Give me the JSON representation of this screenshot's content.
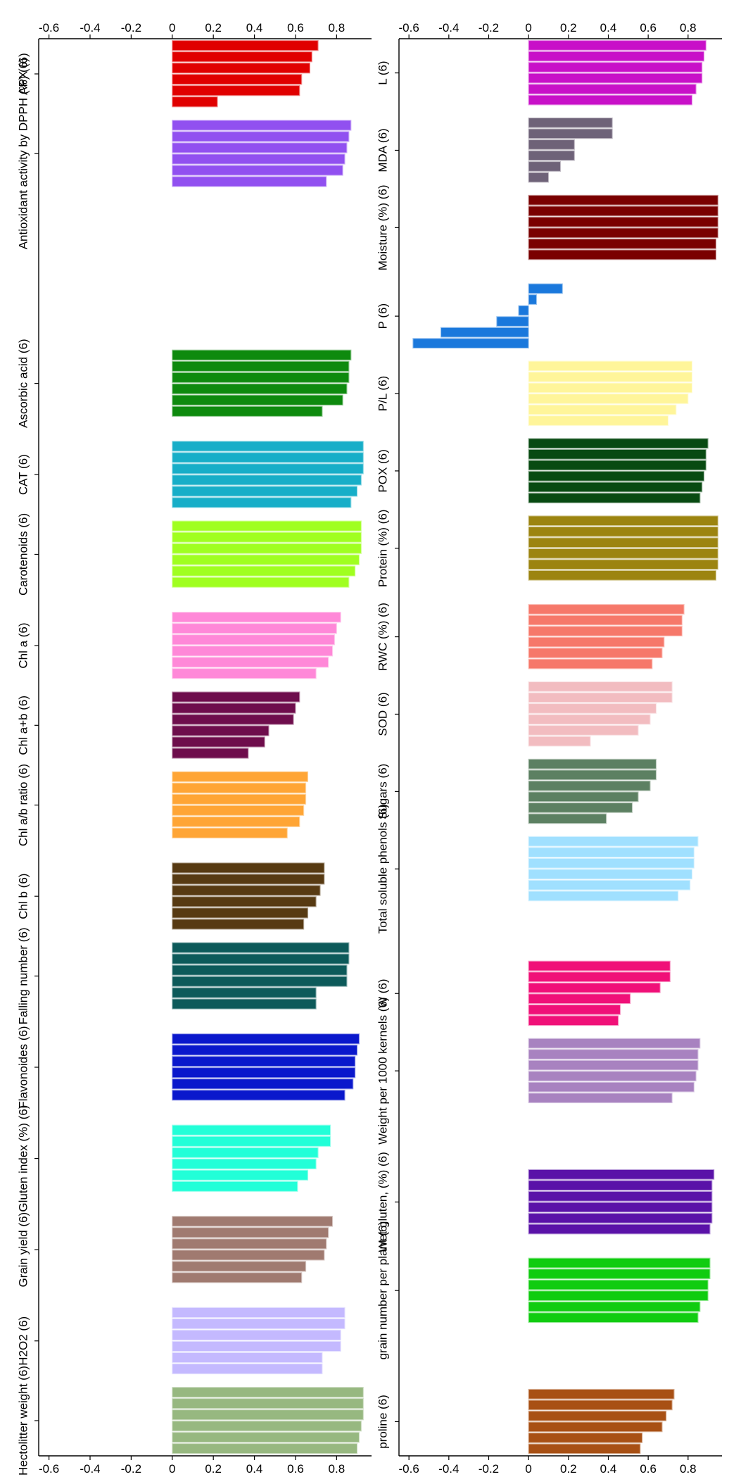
{
  "chart_data": [
    {
      "type": "bar",
      "orientation": "horizontal",
      "xlim": [
        -0.65,
        0.97
      ],
      "x_ticks": [
        -0.6,
        -0.4,
        -0.2,
        0,
        0.2,
        0.4,
        0.6,
        0.8
      ],
      "x_tick_labels": [
        "-0.6",
        "-0.4",
        "-0.2",
        "0",
        "0.2",
        "0.4",
        "0.6",
        "0.8"
      ],
      "grid": false,
      "legend": "none",
      "groups": [
        {
          "label": "APX (6)",
          "color": "#e00000",
          "values": [
            0.71,
            0.68,
            0.67,
            0.63,
            0.62,
            0.22
          ]
        },
        {
          "label": "Antioxidant activity by DPPH (%) (6)",
          "color": "#9150f0",
          "values": [
            0.87,
            0.86,
            0.85,
            0.84,
            0.83,
            0.75
          ],
          "gap_after": 2.4
        },
        {
          "label": "Ascorbic acid (6)",
          "color": "#0e8a0e",
          "values": [
            0.87,
            0.86,
            0.86,
            0.85,
            0.83,
            0.73
          ],
          "gap_after": 0.35
        },
        {
          "label": "CAT (6)",
          "color": "#17aec8",
          "values": [
            0.93,
            0.93,
            0.93,
            0.92,
            0.9,
            0.87
          ]
        },
        {
          "label": "Carotenoids (6)",
          "color": "#a0ff20",
          "values": [
            0.92,
            0.92,
            0.92,
            0.91,
            0.89,
            0.86
          ],
          "gap_after": 0.35
        },
        {
          "label": "Chl a (6)",
          "color": "#ff88d8",
          "values": [
            0.82,
            0.8,
            0.79,
            0.78,
            0.76,
            0.7
          ]
        },
        {
          "label": "Chl a+b (6)",
          "color": "#6e0d4c",
          "values": [
            0.62,
            0.6,
            0.59,
            0.47,
            0.45,
            0.37
          ]
        },
        {
          "label": "Chl a/b ratio (6)",
          "color": "#ffa535",
          "values": [
            0.66,
            0.65,
            0.65,
            0.64,
            0.62,
            0.56
          ],
          "gap_after": 0.35
        },
        {
          "label": "Chl b (6)",
          "color": "#573a12",
          "values": [
            0.74,
            0.74,
            0.72,
            0.7,
            0.66,
            0.64
          ]
        },
        {
          "label": "Falling number (6)",
          "color": "#0d5a5a",
          "values": [
            0.86,
            0.86,
            0.85,
            0.85,
            0.7,
            0.7
          ],
          "gap_after": 0.35
        },
        {
          "label": "Flavonoides (6)",
          "color": "#0a18cc",
          "values": [
            0.91,
            0.9,
            0.89,
            0.89,
            0.88,
            0.84
          ],
          "gap_after": 0.35
        },
        {
          "label": "Gluten index (%) (6)",
          "color": "#22ffd8",
          "values": [
            0.77,
            0.77,
            0.71,
            0.7,
            0.66,
            0.61
          ],
          "gap_after": 0.35
        },
        {
          "label": "Grain yield (6)",
          "color": "#a07a70",
          "values": [
            0.78,
            0.76,
            0.75,
            0.74,
            0.65,
            0.63
          ],
          "gap_after": 0.35
        },
        {
          "label": "H2O2 (6)",
          "color": "#c4b9ff",
          "values": [
            0.84,
            0.84,
            0.82,
            0.82,
            0.73,
            0.73
          ]
        },
        {
          "label": "Hectolitter weight (6)",
          "color": "#97b880",
          "values": [
            0.93,
            0.93,
            0.93,
            0.92,
            0.91,
            0.9
          ]
        }
      ]
    },
    {
      "type": "bar",
      "orientation": "horizontal",
      "xlim": [
        -0.65,
        0.97
      ],
      "x_ticks": [
        -0.6,
        -0.4,
        -0.2,
        0,
        0.2,
        0.4,
        0.6,
        0.8
      ],
      "x_tick_labels": [
        "-0.6",
        "-0.4",
        "-0.2",
        "0",
        "0.2",
        "0.4",
        "0.6",
        "0.8"
      ],
      "grid": false,
      "legend": "none",
      "groups": [
        {
          "label": "L (6)",
          "color": "#c810c8",
          "values": [
            0.89,
            0.88,
            0.87,
            0.87,
            0.84,
            0.82
          ]
        },
        {
          "label": "MDA (6)",
          "color": "#6e6278",
          "values": [
            0.42,
            0.42,
            0.23,
            0.23,
            0.16,
            0.1
          ]
        },
        {
          "label": "Moisture (%) (6)",
          "color": "#7a0000",
          "values": [
            0.95,
            0.95,
            0.95,
            0.95,
            0.94,
            0.94
          ],
          "gap_after": 0.35
        },
        {
          "label": "P (6)",
          "color": "#1a78dc",
          "values": [
            0.17,
            0.04,
            -0.05,
            -0.16,
            -0.44,
            -0.58
          ]
        },
        {
          "label": "P/L (6)",
          "color": "#fff59a",
          "values": [
            0.82,
            0.82,
            0.82,
            0.8,
            0.74,
            0.7
          ]
        },
        {
          "label": "POX (6)",
          "color": "#084a12",
          "values": [
            0.9,
            0.89,
            0.89,
            0.88,
            0.87,
            0.86
          ]
        },
        {
          "label": "Protein (%) (6)",
          "color": "#9c8410",
          "values": [
            0.95,
            0.95,
            0.95,
            0.95,
            0.95,
            0.94
          ],
          "gap_after": 0.35
        },
        {
          "label": "RWC (%) (6)",
          "color": "#f6786a",
          "values": [
            0.78,
            0.77,
            0.77,
            0.68,
            0.67,
            0.62
          ]
        },
        {
          "label": "SOD (6)",
          "color": "#f2bcc0",
          "values": [
            0.72,
            0.72,
            0.64,
            0.61,
            0.55,
            0.31
          ]
        },
        {
          "label": "Sugars (6)",
          "color": "#5c8062",
          "values": [
            0.64,
            0.64,
            0.61,
            0.55,
            0.52,
            0.39
          ]
        },
        {
          "label": "Total soluble phenols (6)",
          "color": "#a0e0ff",
          "values": [
            0.85,
            0.83,
            0.83,
            0.82,
            0.81,
            0.75
          ],
          "gap_after": 0.9
        },
        {
          "label": "W (6)",
          "color": "#f01078",
          "values": [
            0.71,
            0.71,
            0.66,
            0.51,
            0.46,
            0.45
          ]
        },
        {
          "label": "Weight per 1000 kernels (6)",
          "color": "#a882c0",
          "values": [
            0.86,
            0.85,
            0.85,
            0.84,
            0.83,
            0.72
          ],
          "gap_after": 1.0
        },
        {
          "label": "Wet gluten, (%) (6)",
          "color": "#5a12a8",
          "values": [
            0.93,
            0.92,
            0.92,
            0.92,
            0.92,
            0.91
          ],
          "gap_after": 0.35
        },
        {
          "label": "grain number per plant (6)",
          "color": "#10cc10",
          "values": [
            0.91,
            0.91,
            0.9,
            0.9,
            0.86,
            0.85
          ],
          "gap_after": 1.0
        },
        {
          "label": "proline (6)",
          "color": "#a85014",
          "values": [
            0.73,
            0.72,
            0.69,
            0.67,
            0.57,
            0.56
          ]
        }
      ]
    }
  ]
}
